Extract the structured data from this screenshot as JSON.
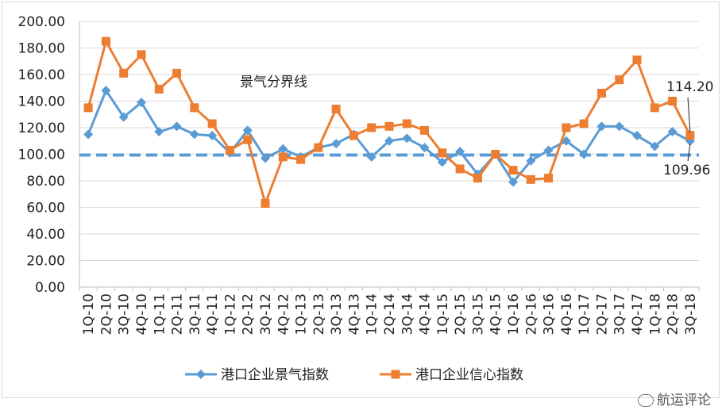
{
  "chart_data": {
    "type": "line",
    "categories": [
      "1Q-10",
      "2Q-10",
      "3Q-10",
      "4Q-10",
      "1Q-11",
      "2Q-11",
      "3Q-11",
      "4Q-11",
      "1Q-12",
      "2Q-12",
      "3Q-12",
      "4Q-12",
      "1Q-13",
      "2Q-13",
      "3Q-13",
      "4Q-13",
      "1Q-14",
      "2Q-14",
      "3Q-14",
      "4Q-14",
      "1Q-15",
      "2Q-15",
      "3Q-15",
      "4Q-15",
      "1Q-16",
      "2Q-16",
      "3Q-16",
      "4Q-16",
      "1Q-17",
      "2Q-17",
      "3Q-17",
      "4Q-17",
      "1Q-18",
      "2Q-18",
      "3Q-18"
    ],
    "series": [
      {
        "name": "港口企业景气指数",
        "color": "#5b9bd5",
        "marker": "diamond",
        "values": [
          115,
          148,
          128,
          139,
          117,
          121,
          115,
          114,
          101,
          118,
          97,
          104,
          98,
          105,
          108,
          115,
          98,
          110,
          112,
          105,
          94,
          102,
          85,
          100,
          79,
          95,
          103,
          110,
          100,
          121,
          121,
          114,
          106,
          117,
          109.96
        ]
      },
      {
        "name": "港口企业信心指数",
        "color": "#ed7d31",
        "marker": "square",
        "values": [
          135,
          185,
          161,
          175,
          149,
          161,
          135,
          123,
          103,
          111,
          63,
          98,
          96,
          105,
          134,
          114,
          120,
          121,
          123,
          118,
          101,
          89,
          82,
          100,
          88,
          81,
          82,
          120,
          123,
          146,
          156,
          171,
          135,
          140,
          114.2
        ]
      }
    ],
    "reference_line": {
      "value": 100,
      "label": "景气分界线",
      "color": "#5b9bd5"
    },
    "annotations": [
      "114.20",
      "109.96"
    ],
    "ylim": [
      0,
      200
    ],
    "yticks": [
      "0.00",
      "20.00",
      "40.00",
      "60.00",
      "80.00",
      "100.00",
      "120.00",
      "140.00",
      "160.00",
      "180.00",
      "200.00"
    ],
    "grid": true,
    "legend_position": "bottom"
  },
  "watermark": "航运评论"
}
